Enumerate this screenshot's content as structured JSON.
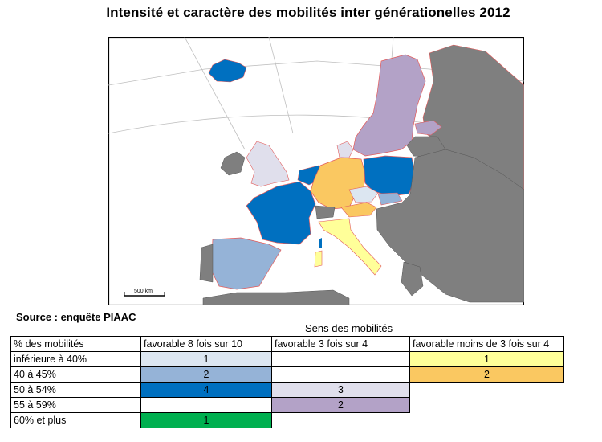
{
  "title": "Intensité et caractère des mobilités inter générationelles 2012",
  "map": {
    "scale_label": "500 km",
    "colors": {
      "background": "#ffffff",
      "sea": "#ffffff",
      "non_participating": "#7f7f7f",
      "favorable_8_1": "#dce6f1",
      "favorable_8_2": "#95b3d7",
      "favorable_8_4": "#0070c0",
      "favorable_8_5": "#00b050",
      "favorable_3_3": "#e0dfec",
      "favorable_3_2": "#b3a2c7",
      "moins_3_1": "#ffff99",
      "moins_3_2": "#fac861",
      "borders": "#e25b5b"
    },
    "countries": {
      "iceland": "favorable_8_4",
      "united_kingdom": "favorable_3_3",
      "ireland": "non_participating",
      "france": "favorable_8_4",
      "spain": "favorable_8_2",
      "germany": "moins_3_2",
      "poland": "favorable_8_4",
      "czech_republic": "favorable_8_1",
      "slovakia": "favorable_8_2",
      "austria": "moins_3_2",
      "italy": "moins_3_1",
      "sweden": "favorable_3_2",
      "norway": "favorable_3_2",
      "denmark": "favorable_3_3",
      "estonia": "favorable_3_2",
      "netherlands": "favorable_8_4",
      "belgium": "favorable_8_4"
    }
  },
  "source": "Source : enquête PIAAC",
  "legend": {
    "caption": "Sens des mobilités",
    "headers": [
      "% des mobilités",
      "favorable 8 fois sur 10",
      "favorable 3 fois sur 4",
      "favorable moins de 3 fois sur 4"
    ],
    "rows": [
      {
        "label": "inférieure à 40%",
        "c1": "1",
        "c2": "",
        "c3": "1"
      },
      {
        "label": "40 à 45%",
        "c1": "2",
        "c2": "",
        "c3": "2"
      },
      {
        "label": "50 à 54%",
        "c1": "4",
        "c2": "3",
        "c3": ""
      },
      {
        "label": "55 à 59%",
        "c1": "",
        "c2": "2",
        "c3": ""
      },
      {
        "label": "60% et plus",
        "c1": "1",
        "c2": "",
        "c3": ""
      }
    ]
  }
}
